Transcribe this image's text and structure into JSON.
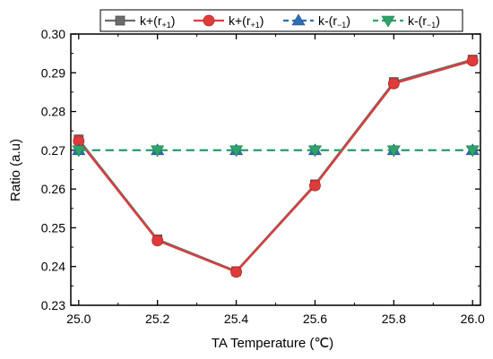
{
  "chart_data": {
    "type": "line",
    "title": "",
    "xlabel": "TA Temperature (℃)",
    "ylabel": "Ratio (a.u)",
    "xlim": [
      24.98,
      26.02
    ],
    "ylim": [
      0.23,
      0.3
    ],
    "x_ticks": [
      "25.0",
      "25.2",
      "25.4",
      "25.6",
      "25.8",
      "26.0"
    ],
    "y_ticks": [
      "0.23",
      "0.24",
      "0.25",
      "0.26",
      "0.27",
      "0.28",
      "0.29",
      "0.30"
    ],
    "x": [
      25.0,
      25.2,
      25.4,
      25.6,
      25.8,
      26.0
    ],
    "grid": false,
    "legend_position": "top-right",
    "series": [
      {
        "name": "k+(r₊₁)",
        "legend_main": "k+(r",
        "legend_sub": "+1",
        "legend_tail": ")",
        "values": [
          0.2728,
          0.247,
          0.2388,
          0.2612,
          0.2876,
          0.2934
        ],
        "color": "#6b6b6b",
        "marker": "square",
        "dash": "solid"
      },
      {
        "name": "k+(r₊₁)",
        "legend_main": "k+(r",
        "legend_sub": "+1",
        "legend_tail": ")",
        "values": [
          0.2724,
          0.2467,
          0.2386,
          0.2609,
          0.2872,
          0.2931
        ],
        "color": "#e03b3b",
        "marker": "circle",
        "dash": "solid"
      },
      {
        "name": "k-(r₋₁)",
        "legend_main": "k-(r",
        "legend_sub": "−1",
        "legend_tail": ")",
        "values": [
          0.27,
          0.27,
          0.27,
          0.27,
          0.27,
          0.27
        ],
        "color": "#2f6db5",
        "marker": "triangle-up",
        "dash": "dashed"
      },
      {
        "name": "k-(r₋₁)",
        "legend_main": "k-(r",
        "legend_sub": "−1",
        "legend_tail": ")",
        "values": [
          0.27,
          0.27,
          0.27,
          0.27,
          0.27,
          0.27
        ],
        "color": "#2ea36a",
        "marker": "triangle-down",
        "dash": "dashed"
      }
    ]
  }
}
